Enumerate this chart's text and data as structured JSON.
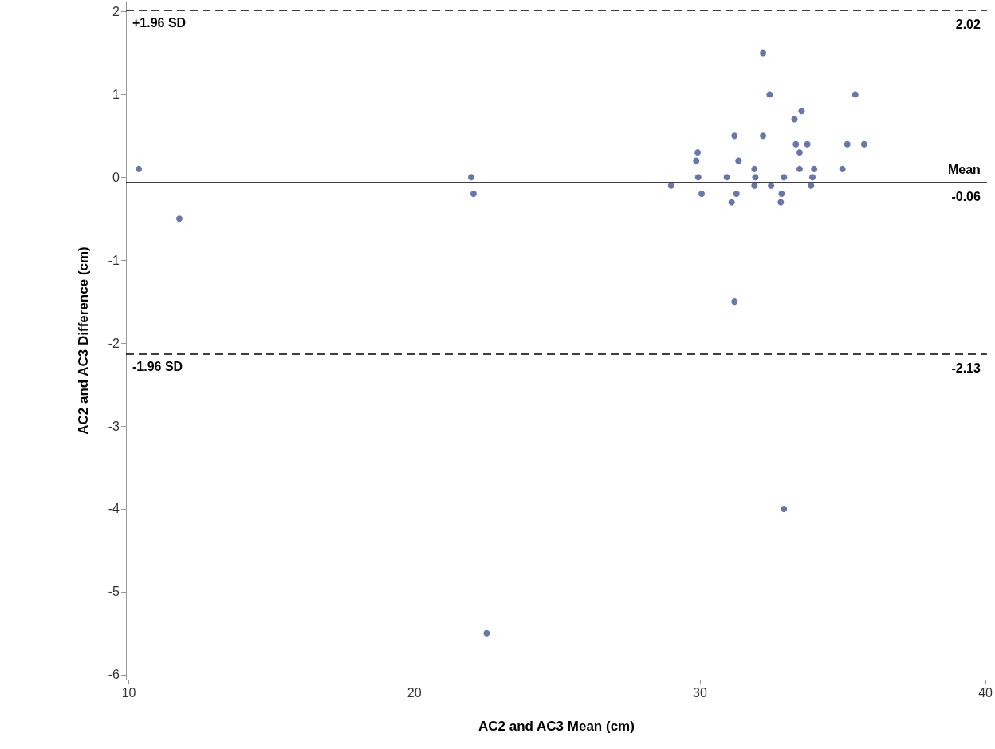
{
  "chart_data": {
    "type": "scatter",
    "xlabel": "AC2 and AC3 Mean (cm)",
    "ylabel": "AC2 and AC3 Difference (cm)",
    "x": [
      10.35,
      11.77,
      21.99,
      22.07,
      22.53,
      32.94,
      32.21,
      32.44,
      35.44,
      33.56,
      33.31,
      31.21,
      32.21,
      33.36,
      33.76,
      35.16,
      35.75,
      29.92,
      33.49,
      29.87,
      31.35,
      31.91,
      33.49,
      34.0,
      34.99,
      29.94,
      30.94,
      31.94,
      32.94,
      33.94,
      28.99,
      31.91,
      32.49,
      33.89,
      30.06,
      31.28,
      32.86,
      31.11,
      32.83,
      31.21
    ],
    "values": [
      0.1,
      -0.5,
      0.0,
      -0.2,
      -5.5,
      -4.0,
      1.5,
      1.0,
      1.0,
      0.8,
      0.7,
      0.5,
      0.5,
      0.4,
      0.4,
      0.4,
      0.4,
      0.3,
      0.3,
      0.2,
      0.2,
      0.1,
      0.1,
      0.1,
      0.1,
      0.0,
      0.0,
      0.0,
      0.0,
      0.0,
      -0.1,
      -0.1,
      -0.1,
      -0.1,
      -0.2,
      -0.2,
      -0.2,
      -0.3,
      -0.3,
      -1.5
    ],
    "color": "#3f5597",
    "marker": "circle",
    "xlim": [
      9.9,
      40.05
    ],
    "xticks": [
      10,
      20,
      30,
      40
    ],
    "ylim": [
      -6.06,
      2.12
    ],
    "yticks": [
      -6,
      -5,
      -4,
      -3,
      -2,
      -1,
      0,
      1,
      2
    ],
    "grid": false,
    "ref_lines": [
      {
        "axis": "y",
        "value": 2.02,
        "label": "2.02",
        "line_style": "dashed",
        "color": "#000000"
      },
      {
        "axis": "y",
        "value": -0.06,
        "label": "-0.06",
        "line_style": "solid",
        "color": "#000000"
      },
      {
        "axis": "y",
        "value": -2.13,
        "label": "-2.13",
        "line_style": "dashed",
        "color": "#000000"
      }
    ],
    "annotations": [
      "+1.96 SD",
      "Mean",
      "-1.96 SD"
    ]
  }
}
